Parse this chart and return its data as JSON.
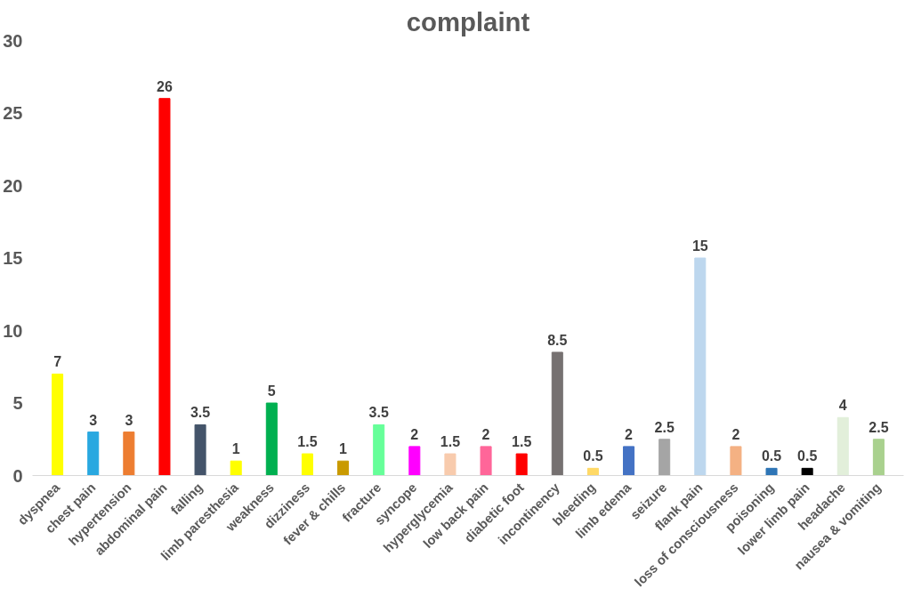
{
  "chart_data": {
    "type": "bar",
    "title": "complaint",
    "categories": [
      "dyspnea",
      "chest pain",
      "hypertension",
      "abdominal pain",
      "falling",
      "limb paresthesia",
      "weakness",
      "dizziness",
      "fever & chills",
      "fracture",
      "syncope",
      "hyperglycemia",
      "low back pain",
      "diabetic foot",
      "incontinency",
      "bleeding",
      "limb edema",
      "seizure",
      "flank pain",
      "loss of consciousness",
      "poisoning",
      "lower limb pain",
      "headache",
      "nausea & vomiting"
    ],
    "values": [
      7,
      3,
      3,
      26,
      3.5,
      1,
      5,
      1.5,
      1,
      3.5,
      2,
      1.5,
      2,
      1.5,
      8.5,
      0.5,
      2,
      2.5,
      15,
      2,
      0.5,
      0.5,
      4,
      2.5
    ],
    "colors": [
      "#ffff00",
      "#29a8e0",
      "#ed7d31",
      "#ff0000",
      "#44546a",
      "#ffff00",
      "#00b050",
      "#ffff00",
      "#c99a00",
      "#66ff99",
      "#ff00ff",
      "#f8cbad",
      "#ff6699",
      "#ff0000",
      "#767171",
      "#ffd966",
      "#4472c4",
      "#a5a5a5",
      "#bdd7ee",
      "#f4b183",
      "#2e75b6",
      "#000000",
      "#e2efda",
      "#a9d18e"
    ],
    "ylim": [
      0,
      30
    ],
    "yticks": [
      0,
      5,
      10,
      15,
      20,
      25,
      30
    ],
    "data_labels": true,
    "grid": false
  }
}
